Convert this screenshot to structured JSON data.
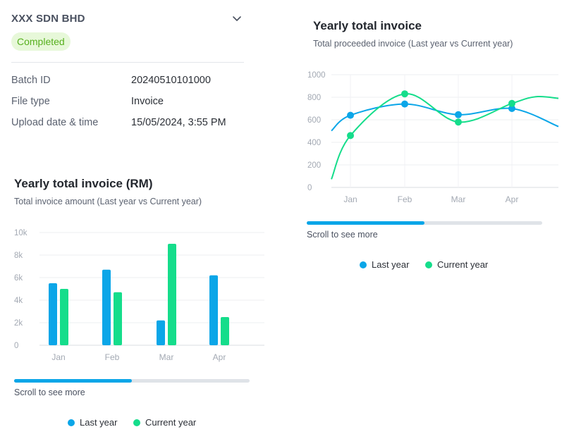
{
  "header": {
    "company_name": "XXX SDN BHD",
    "status": "Completed",
    "expand_icon": "chevron-down-icon"
  },
  "details": {
    "batch_id_label": "Batch ID",
    "batch_id_value": "20240510101000",
    "file_type_label": "File type",
    "file_type_value": "Invoice",
    "upload_label": "Upload date & time",
    "upload_value": "15/05/2024, 3:55 PM"
  },
  "colors": {
    "last_year": "#0ba6e8",
    "current_year": "#15dd8b",
    "status_bg": "#e7f8d9",
    "status_text": "#57b01e",
    "scroll_thumb": "#0ba6e8"
  },
  "line_panel": {
    "title": "Yearly total invoice",
    "subtitle": "Total proceeded invoice (Last year vs Current year)",
    "scroll_hint": "Scroll to see more",
    "scroll_progress": 0.5,
    "legend_last": "Last year",
    "legend_current": "Current year"
  },
  "bar_panel": {
    "title": "Yearly total invoice (RM)",
    "subtitle": "Total invoice amount (Last year vs Current year)",
    "scroll_hint": "Scroll to see more",
    "scroll_progress": 0.5,
    "legend_last": "Last year",
    "legend_current": "Current year"
  },
  "chart_data": [
    {
      "type": "line",
      "title": "Yearly total invoice",
      "subtitle": "Total proceeded invoice (Last year vs Current year)",
      "categories": [
        "Jan",
        "Feb",
        "Mar",
        "Apr"
      ],
      "series": [
        {
          "name": "Last year",
          "values": [
            640,
            740,
            645,
            700
          ]
        },
        {
          "name": "Current year",
          "values": [
            460,
            830,
            580,
            745
          ]
        }
      ],
      "ylim": [
        0,
        1000
      ],
      "yticks": [
        "0",
        "200",
        "400",
        "600",
        "800",
        "1000"
      ],
      "grid": true,
      "legend": "bottom"
    },
    {
      "type": "bar",
      "title": "Yearly total invoice (RM)",
      "subtitle": "Total invoice amount (Last year vs Current year)",
      "categories": [
        "Jan",
        "Feb",
        "Mar",
        "Apr"
      ],
      "series": [
        {
          "name": "Last year",
          "values": [
            5500,
            6700,
            2200,
            6200
          ]
        },
        {
          "name": "Current year",
          "values": [
            5000,
            4700,
            9000,
            2500
          ]
        }
      ],
      "ylim": [
        0,
        10000
      ],
      "yticks": [
        "0",
        "2k",
        "4k",
        "6k",
        "8k",
        "10k"
      ],
      "grid": true,
      "legend": "bottom"
    }
  ]
}
